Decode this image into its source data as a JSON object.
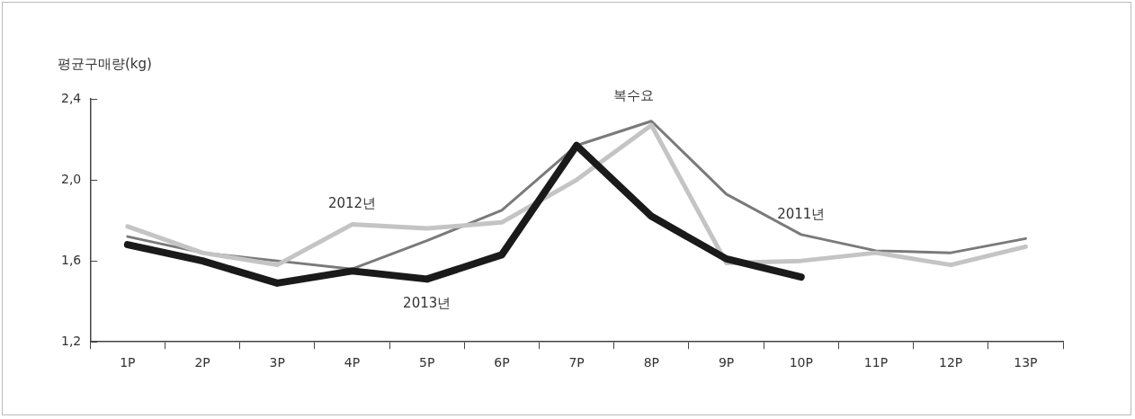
{
  "chart_data": {
    "type": "line",
    "ylabel": "평균구매량(kg)",
    "categories": [
      "1P",
      "2P",
      "3P",
      "4P",
      "5P",
      "6P",
      "7P",
      "8P",
      "9P",
      "10P",
      "11P",
      "12P",
      "13P"
    ],
    "series": [
      {
        "name": "2011년",
        "color": "#7a7a7a",
        "values": [
          1.72,
          1.64,
          1.6,
          1.56,
          1.7,
          1.85,
          2.17,
          2.29,
          1.93,
          1.73,
          1.65,
          1.64,
          1.71
        ]
      },
      {
        "name": "2012년",
        "color": "#c4c4c4",
        "values": [
          1.77,
          1.64,
          1.58,
          1.78,
          1.76,
          1.79,
          2.0,
          2.27,
          1.59,
          1.6,
          1.64,
          1.58,
          1.67
        ]
      },
      {
        "name": "2013년",
        "color": "#1a1a1a",
        "values": [
          1.68,
          1.6,
          1.49,
          1.55,
          1.51,
          1.63,
          2.17,
          1.82,
          1.61,
          1.52,
          null,
          null,
          null
        ]
      }
    ],
    "annotations": [
      "복수요"
    ],
    "ylim": [
      1.2,
      2.4
    ],
    "yticks": [
      {
        "value": 1.2,
        "label": "1,2"
      },
      {
        "value": 1.6,
        "label": "1,6"
      },
      {
        "value": 2.0,
        "label": "2,0"
      },
      {
        "value": 2.4,
        "label": "2,4"
      }
    ],
    "grid": false,
    "legend": false,
    "marker": "none"
  }
}
